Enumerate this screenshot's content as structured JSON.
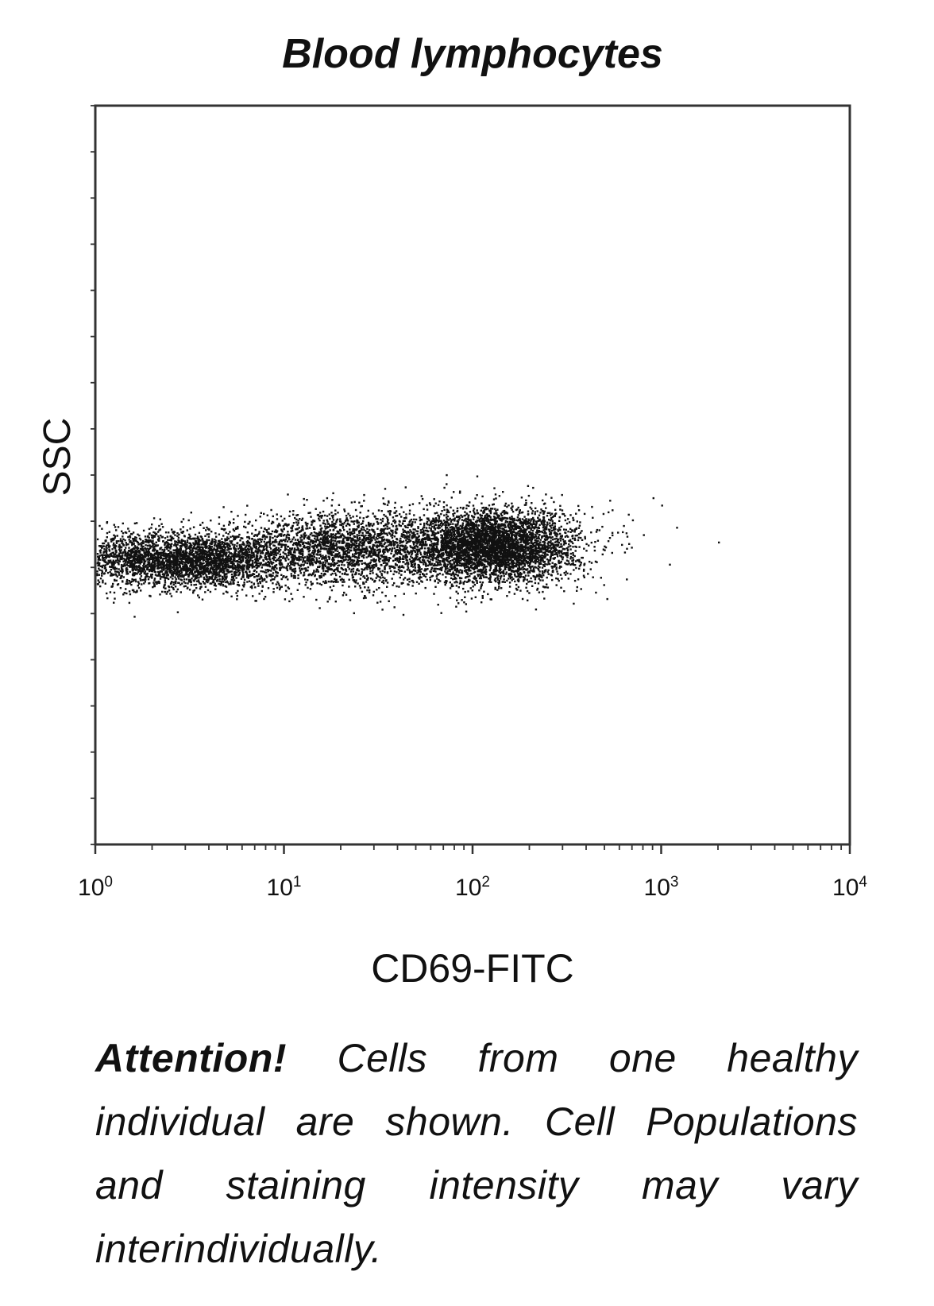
{
  "chart_data": {
    "type": "scatter",
    "title": "Blood lymphocytes",
    "xlabel": "CD69-FITC",
    "ylabel": "SSC",
    "x_scale": "log",
    "xlim": [
      1,
      10000
    ],
    "x_ticks": [
      {
        "base": "10",
        "exp": "0"
      },
      {
        "base": "10",
        "exp": "1"
      },
      {
        "base": "10",
        "exp": "2"
      },
      {
        "base": "10",
        "exp": "3"
      },
      {
        "base": "10",
        "exp": "4"
      }
    ],
    "grid": false,
    "legend": "none",
    "point_color": "#111111",
    "populations": [
      {
        "x_center": 3.5,
        "y_center": 0.385,
        "x_log_spread": 0.22,
        "y_spread": 0.018,
        "count": 2200
      },
      {
        "x_center": 20,
        "y_center": 0.4,
        "x_log_spread": 0.32,
        "y_spread": 0.025,
        "count": 2600
      },
      {
        "x_center": 130,
        "y_center": 0.405,
        "x_log_spread": 0.22,
        "y_spread": 0.025,
        "count": 4200
      },
      {
        "x_center": 1.5,
        "y_center": 0.39,
        "x_log_spread": 0.2,
        "y_spread": 0.02,
        "count": 900
      }
    ],
    "outliers": [
      {
        "x": 700,
        "y": 0.44
      },
      {
        "x": 800,
        "y": 0.42
      },
      {
        "x": 1000,
        "y": 0.46
      },
      {
        "x": 1100,
        "y": 0.38
      },
      {
        "x": 2000,
        "y": 0.41
      },
      {
        "x": 900,
        "y": 0.47
      },
      {
        "x": 650,
        "y": 0.36
      },
      {
        "x": 1200,
        "y": 0.43
      }
    ]
  },
  "note": {
    "bold": "Attention!",
    "text": " Cells from one healthy individual are shown. Cell Populations and staining intensity may vary interindividually."
  }
}
